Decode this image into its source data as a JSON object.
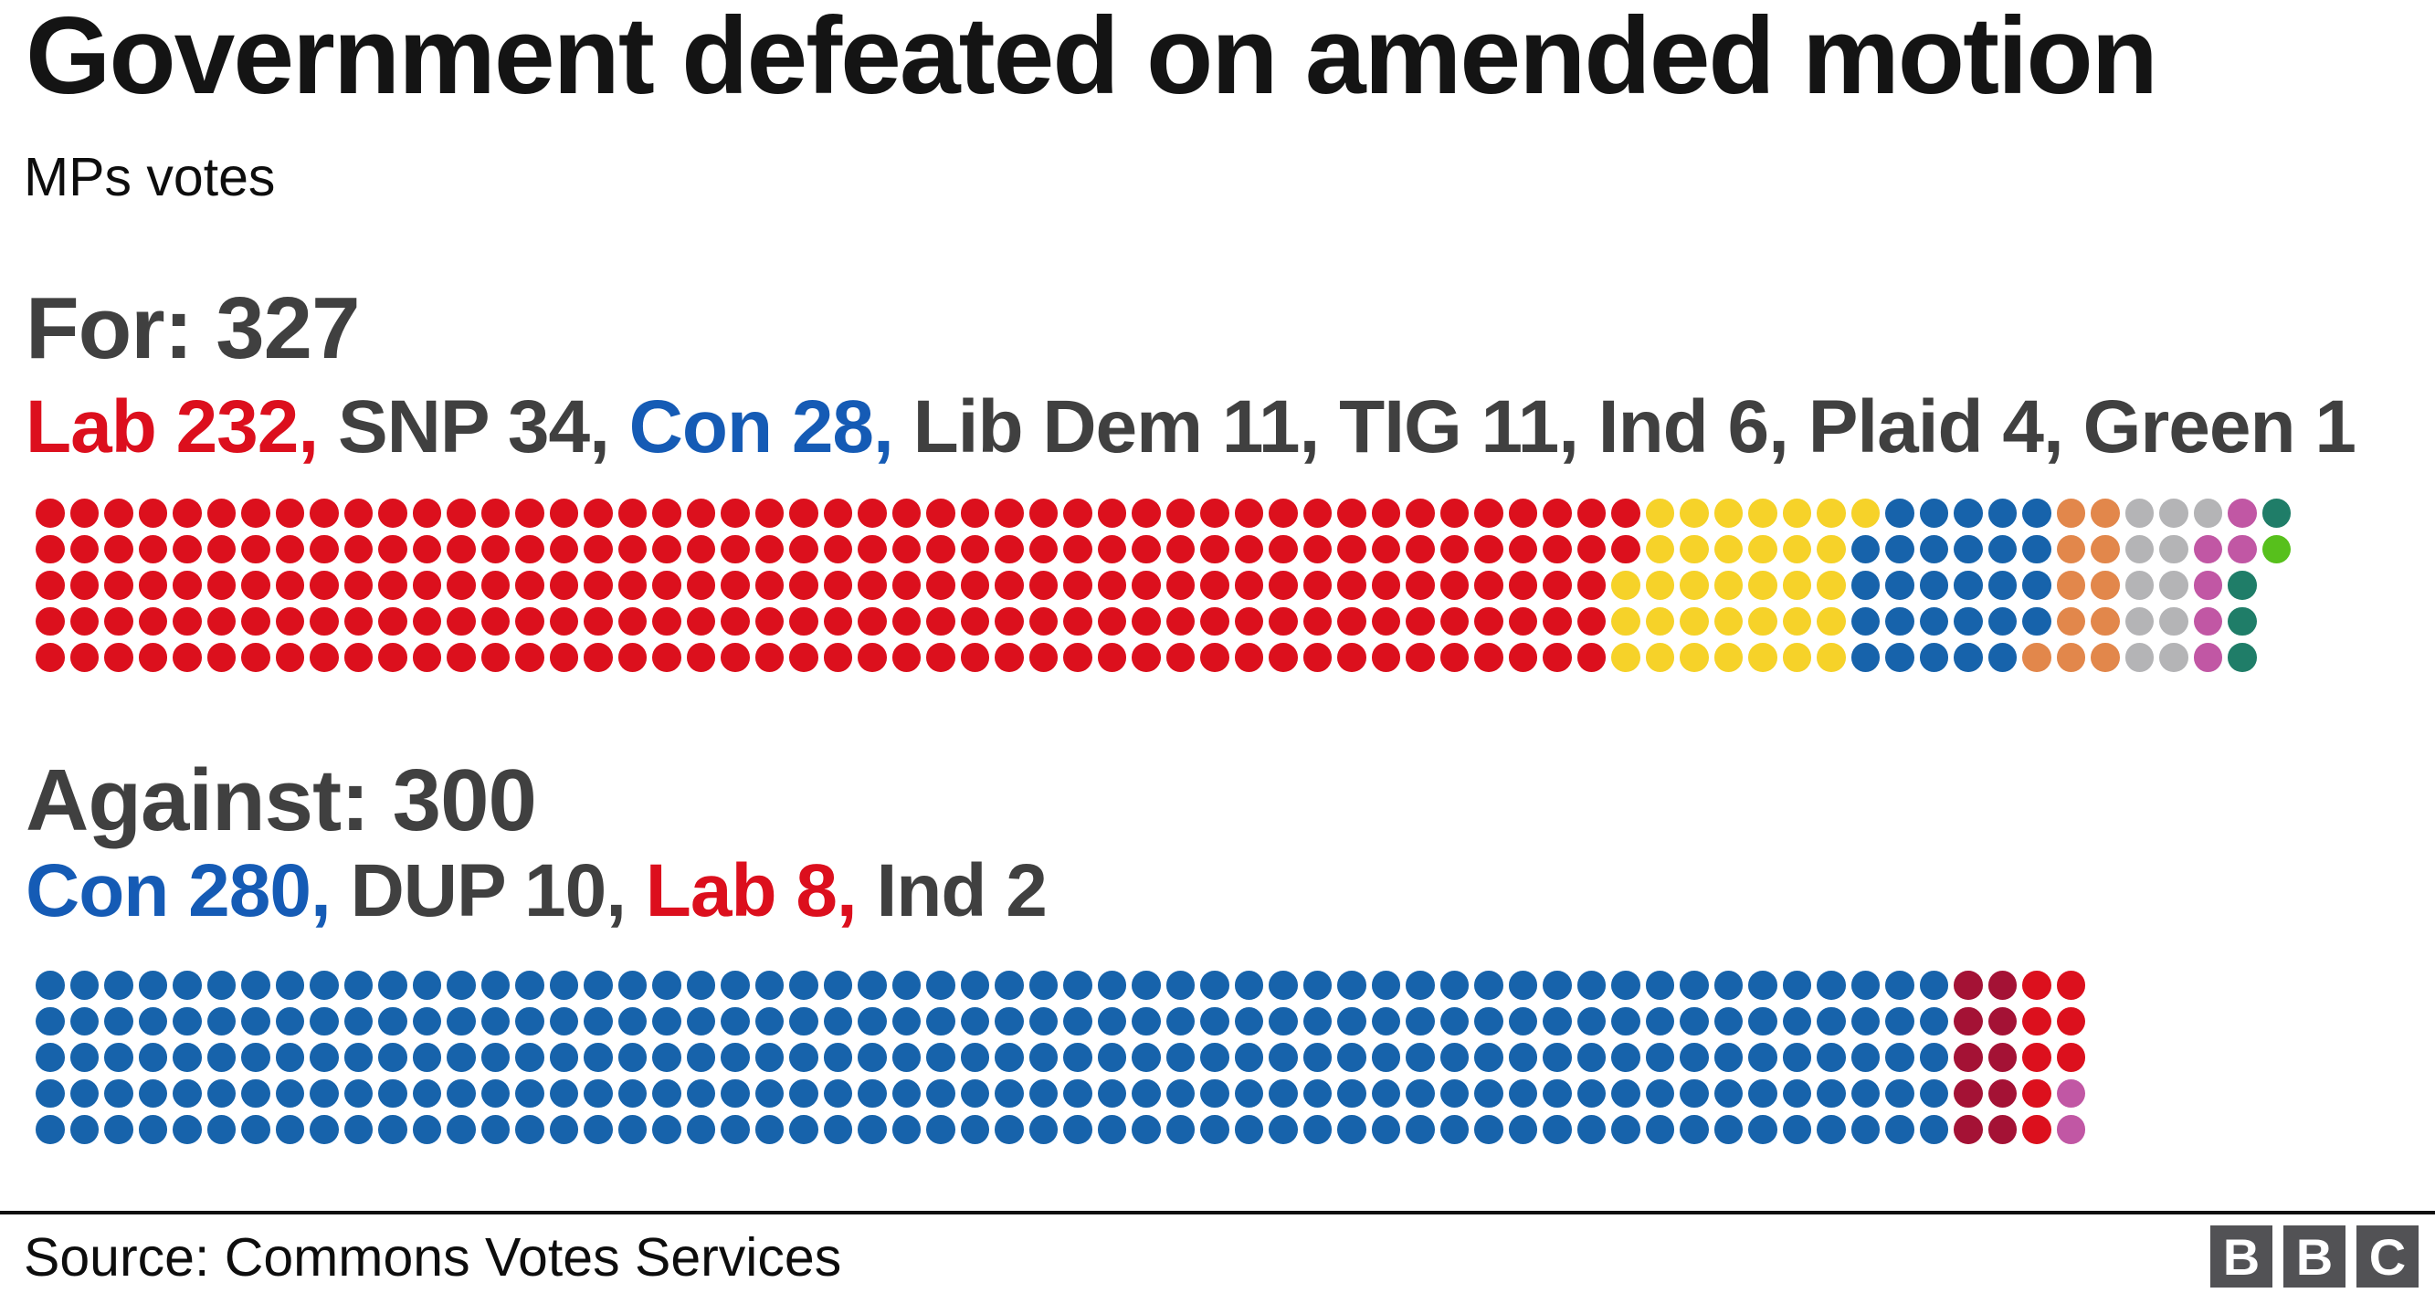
{
  "page": {
    "title": "Government defeated on amended motion",
    "subtitle": "MPs votes",
    "source": "Source: Commons Votes Services",
    "logo_letters": [
      "B",
      "B",
      "C"
    ]
  },
  "colors": {
    "lab": "#dc101d",
    "snp": "#f6d229",
    "con": "#1763ab",
    "libdem": "#e2874b",
    "tig": "#b4b4b6",
    "ind": "#c157a4",
    "plaid": "#1f7d68",
    "green": "#57c01c",
    "dup": "#a41235",
    "text_gray": "#404040",
    "text_red": "#dc0f1d",
    "text_blue": "#155bb5"
  },
  "sections": [
    {
      "heading": "For: 327",
      "breakdown": [
        {
          "text": "Lab 232, ",
          "color": "#dc0f1d"
        },
        {
          "text": "SNP 34, ",
          "color": "#404040"
        },
        {
          "text": "Con 28, ",
          "color": "#155bb5"
        },
        {
          "text": "Lib Dem 11, TIG 11, Ind 6, Plaid 4, Green 1",
          "color": "#404040"
        }
      ]
    },
    {
      "heading": "Against: 300",
      "breakdown": [
        {
          "text": "Con 280, ",
          "color": "#155bb5"
        },
        {
          "text": "DUP 10, ",
          "color": "#404040"
        },
        {
          "text": "Lab 8, ",
          "color": "#dc0f1d"
        },
        {
          "text": "Ind 2",
          "color": "#404040"
        }
      ]
    }
  ],
  "chart_data": [
    {
      "type": "dot-matrix",
      "title": "For: 327",
      "total": 327,
      "rows": 5,
      "columns": 66,
      "fill_order": "column-major-top-to-bottom",
      "series": [
        {
          "name": "Lab",
          "value": 232,
          "color": "#dc101d"
        },
        {
          "name": "SNP",
          "value": 34,
          "color": "#f6d229"
        },
        {
          "name": "Con",
          "value": 28,
          "color": "#1763ab"
        },
        {
          "name": "Lib Dem",
          "value": 11,
          "color": "#e2874b"
        },
        {
          "name": "TIG",
          "value": 11,
          "color": "#b4b4b6"
        },
        {
          "name": "Ind",
          "value": 6,
          "color": "#c157a4"
        },
        {
          "name": "Plaid",
          "value": 4,
          "color": "#1f7d68"
        },
        {
          "name": "Green",
          "value": 1,
          "color": "#57c01c"
        }
      ]
    },
    {
      "type": "dot-matrix",
      "title": "Against: 300",
      "total": 300,
      "rows": 5,
      "columns": 60,
      "fill_order": "column-major-top-to-bottom",
      "series": [
        {
          "name": "Con",
          "value": 280,
          "color": "#1763ab"
        },
        {
          "name": "DUP",
          "value": 10,
          "color": "#a41235"
        },
        {
          "name": "Lab",
          "value": 8,
          "color": "#dc101d"
        },
        {
          "name": "Ind",
          "value": 2,
          "color": "#c157a4"
        }
      ]
    }
  ]
}
